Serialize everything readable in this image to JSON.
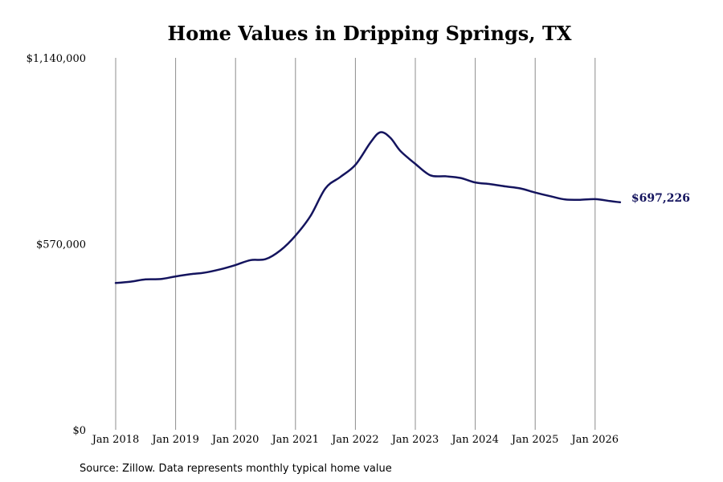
{
  "chart_data": {
    "type": "line",
    "title": "Home Values in Dripping Springs, TX",
    "xlabel": "",
    "ylabel": "",
    "xlim": [
      "Jan 2018",
      "Aug 2026"
    ],
    "ylim": [
      0,
      1140000
    ],
    "x_ticks": [
      "Jan 2018",
      "Jan 2019",
      "Jan 2020",
      "Jan 2021",
      "Jan 2022",
      "Jan 2023",
      "Jan 2024",
      "Jan 2025",
      "Jan 2026"
    ],
    "y_ticks": [
      "$0",
      "$570,000",
      "$1,140,000"
    ],
    "y_tick_values": [
      0,
      570000,
      1140000
    ],
    "grid": {
      "vertical": true,
      "horizontal": false
    },
    "line_color": "#14145e",
    "series": [
      {
        "values": [
          {
            "x": "2018-01",
            "y": 450000
          },
          {
            "x": "2018-04",
            "y": 454000
          },
          {
            "x": "2018-07",
            "y": 461000
          },
          {
            "x": "2018-10",
            "y": 462000
          },
          {
            "x": "2019-01",
            "y": 470000
          },
          {
            "x": "2019-04",
            "y": 477000
          },
          {
            "x": "2019-07",
            "y": 482000
          },
          {
            "x": "2019-10",
            "y": 492000
          },
          {
            "x": "2020-01",
            "y": 505000
          },
          {
            "x": "2020-04",
            "y": 520000
          },
          {
            "x": "2020-07",
            "y": 523000
          },
          {
            "x": "2020-10",
            "y": 550000
          },
          {
            "x": "2021-01",
            "y": 595000
          },
          {
            "x": "2021-04",
            "y": 655000
          },
          {
            "x": "2021-07",
            "y": 740000
          },
          {
            "x": "2021-10",
            "y": 775000
          },
          {
            "x": "2022-01",
            "y": 812000
          },
          {
            "x": "2022-04",
            "y": 880000
          },
          {
            "x": "2022-06",
            "y": 912000
          },
          {
            "x": "2022-08",
            "y": 895000
          },
          {
            "x": "2022-10",
            "y": 855000
          },
          {
            "x": "2023-01",
            "y": 815000
          },
          {
            "x": "2023-04",
            "y": 780000
          },
          {
            "x": "2023-07",
            "y": 777000
          },
          {
            "x": "2023-10",
            "y": 772000
          },
          {
            "x": "2024-01",
            "y": 758000
          },
          {
            "x": "2024-04",
            "y": 753000
          },
          {
            "x": "2024-07",
            "y": 746000
          },
          {
            "x": "2024-10",
            "y": 740000
          },
          {
            "x": "2025-01",
            "y": 727000
          },
          {
            "x": "2025-04",
            "y": 716000
          },
          {
            "x": "2025-07",
            "y": 706000
          },
          {
            "x": "2025-10",
            "y": 705000
          },
          {
            "x": "2026-01",
            "y": 707000
          },
          {
            "x": "2026-04",
            "y": 701000
          },
          {
            "x": "2026-06",
            "y": 697226
          }
        ]
      }
    ],
    "end_label": "$697,226",
    "source": "Source: Zillow. Data represents monthly typical home value"
  }
}
